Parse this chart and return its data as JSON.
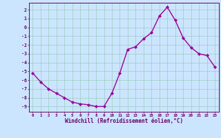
{
  "x": [
    0,
    1,
    2,
    3,
    4,
    5,
    6,
    7,
    8,
    9,
    10,
    11,
    12,
    13,
    14,
    15,
    16,
    17,
    18,
    19,
    20,
    21,
    22,
    23
  ],
  "y": [
    -5.2,
    -6.2,
    -7.0,
    -7.5,
    -8.0,
    -8.5,
    -8.7,
    -8.8,
    -9.0,
    -9.0,
    -7.5,
    -5.2,
    -2.5,
    -2.2,
    -1.3,
    -0.6,
    1.3,
    2.3,
    0.8,
    -1.2,
    -2.3,
    -3.0,
    -3.2,
    -4.5
  ],
  "xlabel": "Windchill (Refroidissement éolien,°C)",
  "xlim": [
    -0.5,
    23.5
  ],
  "ylim": [
    -9.6,
    2.8
  ],
  "xticks": [
    0,
    1,
    2,
    3,
    4,
    5,
    6,
    7,
    8,
    9,
    10,
    11,
    12,
    13,
    14,
    15,
    16,
    17,
    18,
    19,
    20,
    21,
    22,
    23
  ],
  "yticks": [
    2,
    1,
    0,
    -1,
    -2,
    -3,
    -4,
    -5,
    -6,
    -7,
    -8,
    -9
  ],
  "line_color": "#990099",
  "marker_color": "#990099",
  "bg_color": "#cce5ff",
  "grid_color": "#99ccbb",
  "axis_color": "#660066",
  "tick_label_color": "#660066",
  "xlabel_color": "#660066",
  "marker": "D",
  "marker_size": 2.2,
  "line_width": 1.0
}
